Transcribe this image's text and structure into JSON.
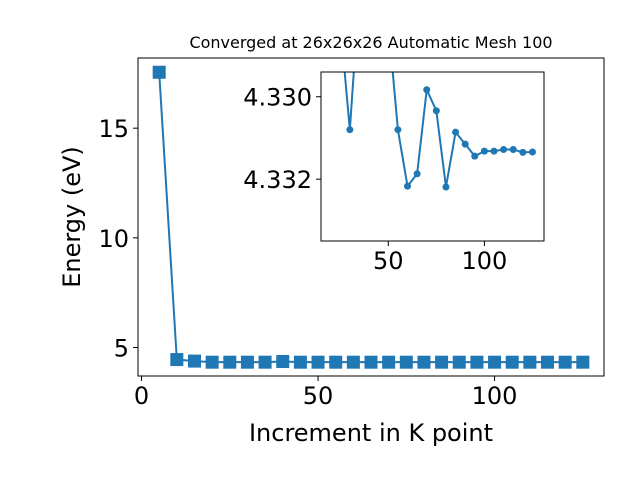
{
  "chart_data": [
    {
      "type": "line",
      "title": "Converged at 26x26x26 Automatic Mesh 100",
      "xlabel": "Increment in K point",
      "ylabel": "Energy (eV)",
      "xlim": [
        -1,
        131
      ],
      "ylim": [
        3.7,
        18.2
      ],
      "xticks": [
        0,
        50,
        100
      ],
      "yticks": [
        5,
        10,
        15
      ],
      "xtick_labels": [
        "0",
        "50",
        "100"
      ],
      "ytick_labels": [
        "5",
        "10",
        "15"
      ],
      "grid": false,
      "series": [
        {
          "marker": "square",
          "color": "#1f77b4",
          "x": [
            5,
            10,
            15,
            20,
            25,
            30,
            35,
            40,
            45,
            50,
            55,
            60,
            65,
            70,
            75,
            80,
            85,
            90,
            95,
            100,
            105,
            110,
            115,
            120,
            125
          ],
          "y": [
            17.55,
            4.45,
            4.38,
            4.33,
            4.33,
            4.33,
            4.33,
            4.36,
            4.33,
            4.33,
            4.33,
            4.33,
            4.33,
            4.33,
            4.33,
            4.33,
            4.33,
            4.33,
            4.33,
            4.33,
            4.33,
            4.33,
            4.33,
            4.33,
            4.33
          ]
        }
      ]
    },
    {
      "type": "line",
      "title": "",
      "xlabel": "",
      "ylabel": "",
      "inset": true,
      "xlim": [
        15,
        131
      ],
      "ylim": [
        4.3335,
        4.3294
      ],
      "y_inverted": true,
      "xticks": [
        50,
        100
      ],
      "yticks": [
        4.33,
        4.332
      ],
      "xtick_labels": [
        "50",
        "100"
      ],
      "ytick_labels": [
        "4.330",
        "4.332"
      ],
      "grid": false,
      "series": [
        {
          "marker": "circle",
          "color": "#1f77b4",
          "x": [
            25,
            30,
            35,
            50,
            55,
            60,
            65,
            70,
            75,
            80,
            85,
            90,
            95,
            100,
            105,
            110,
            115,
            120,
            125
          ],
          "y": [
            4.3282,
            4.3308,
            4.3274,
            4.3282,
            4.3308,
            4.33217,
            4.33187,
            4.32983,
            4.33034,
            4.33219,
            4.33086,
            4.33115,
            4.33144,
            4.33132,
            4.33132,
            4.33128,
            4.33128,
            4.33135,
            4.33134
          ]
        }
      ]
    }
  ]
}
